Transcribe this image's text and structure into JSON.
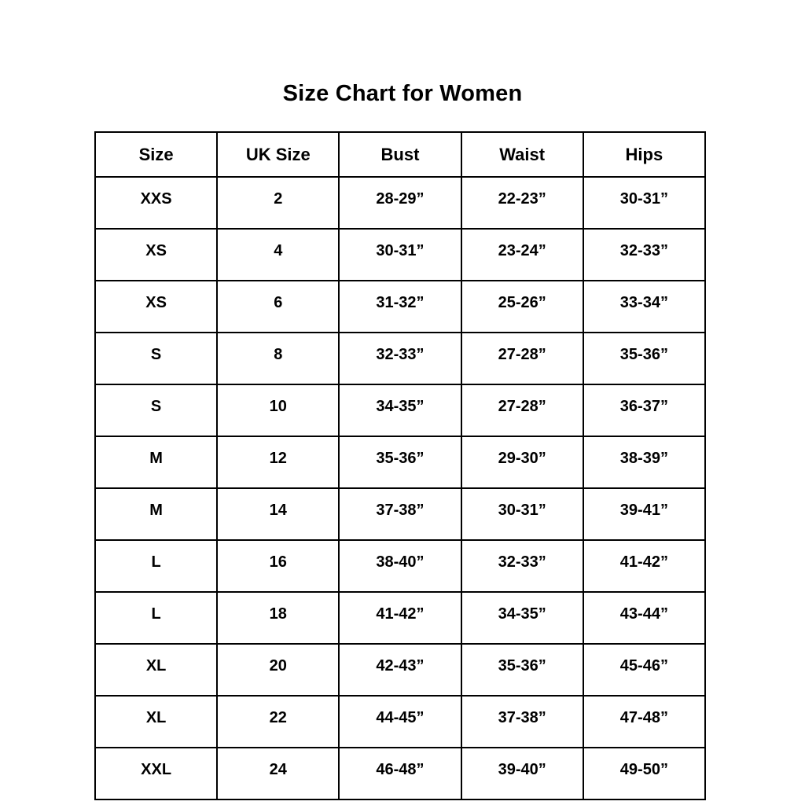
{
  "title": "Size Chart for Women",
  "chart_data": {
    "type": "table",
    "title": "Size Chart for Women",
    "columns": [
      "Size",
      "UK Size",
      "Bust",
      "Waist",
      "Hips"
    ],
    "rows": [
      [
        "XXS",
        "2",
        "28-29”",
        "22-23”",
        "30-31”"
      ],
      [
        "XS",
        "4",
        "30-31”",
        "23-24”",
        "32-33”"
      ],
      [
        "XS",
        "6",
        "31-32”",
        "25-26”",
        "33-34”"
      ],
      [
        "S",
        "8",
        "32-33”",
        "27-28”",
        "35-36”"
      ],
      [
        "S",
        "10",
        "34-35”",
        "27-28”",
        "36-37”"
      ],
      [
        "M",
        "12",
        "35-36”",
        "29-30”",
        "38-39”"
      ],
      [
        "M",
        "14",
        "37-38”",
        "30-31”",
        "39-41”"
      ],
      [
        "L",
        "16",
        "38-40”",
        "32-33”",
        "41-42”"
      ],
      [
        "L",
        "18",
        "41-42”",
        "34-35”",
        "43-44”"
      ],
      [
        "XL",
        "20",
        "42-43”",
        "35-36”",
        "45-46”"
      ],
      [
        "XL",
        "22",
        "44-45”",
        "37-38”",
        "47-48”"
      ],
      [
        "XXL",
        "24",
        "46-48”",
        "39-40”",
        "49-50”"
      ]
    ],
    "text_color": "#000000",
    "border_color": "#000000",
    "background_color": "#ffffff",
    "legend": "off",
    "grid": "on"
  }
}
